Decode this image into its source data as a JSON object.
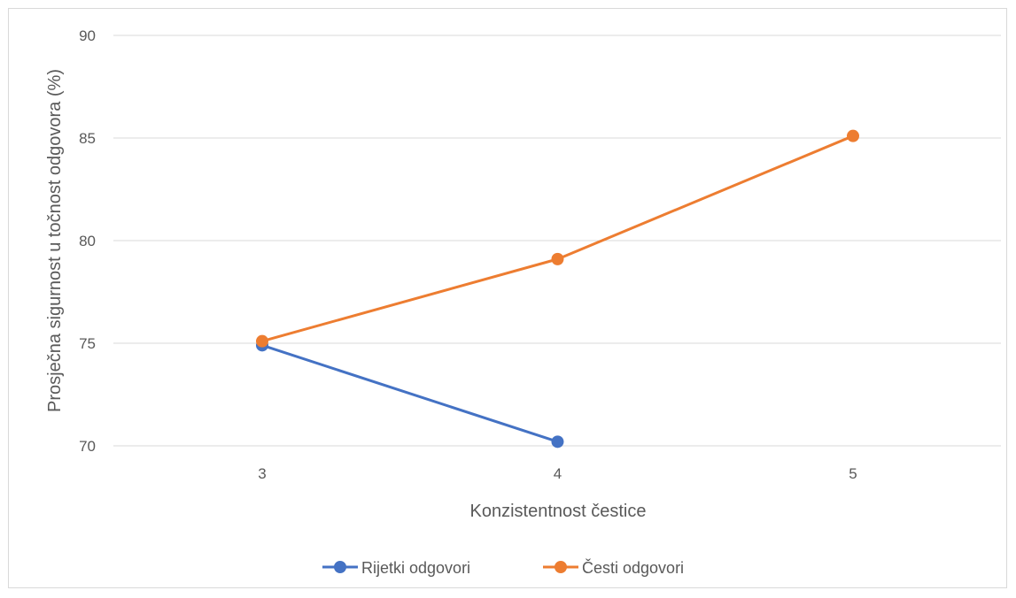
{
  "chart_data": {
    "type": "line",
    "x": [
      3,
      4,
      5
    ],
    "categories": [
      "3",
      "4",
      "5"
    ],
    "series": [
      {
        "name": "Rijetki odgovori",
        "values": [
          74.9,
          70.2,
          null
        ],
        "color": "#4472C4"
      },
      {
        "name": "Česti odgovori",
        "values": [
          75.1,
          79.1,
          85.1
        ],
        "color": "#ED7D31"
      }
    ],
    "xlabel": "Konzistentnost čestice",
    "ylabel": "Prosječna sigurnost u točnost odgovora (%)",
    "ylim": [
      70,
      90
    ],
    "yticks": [
      70,
      75,
      80,
      85,
      90
    ],
    "grid": true,
    "legend": "bottom",
    "grid_color": "#d9d9d9",
    "text_color": "#595959"
  }
}
